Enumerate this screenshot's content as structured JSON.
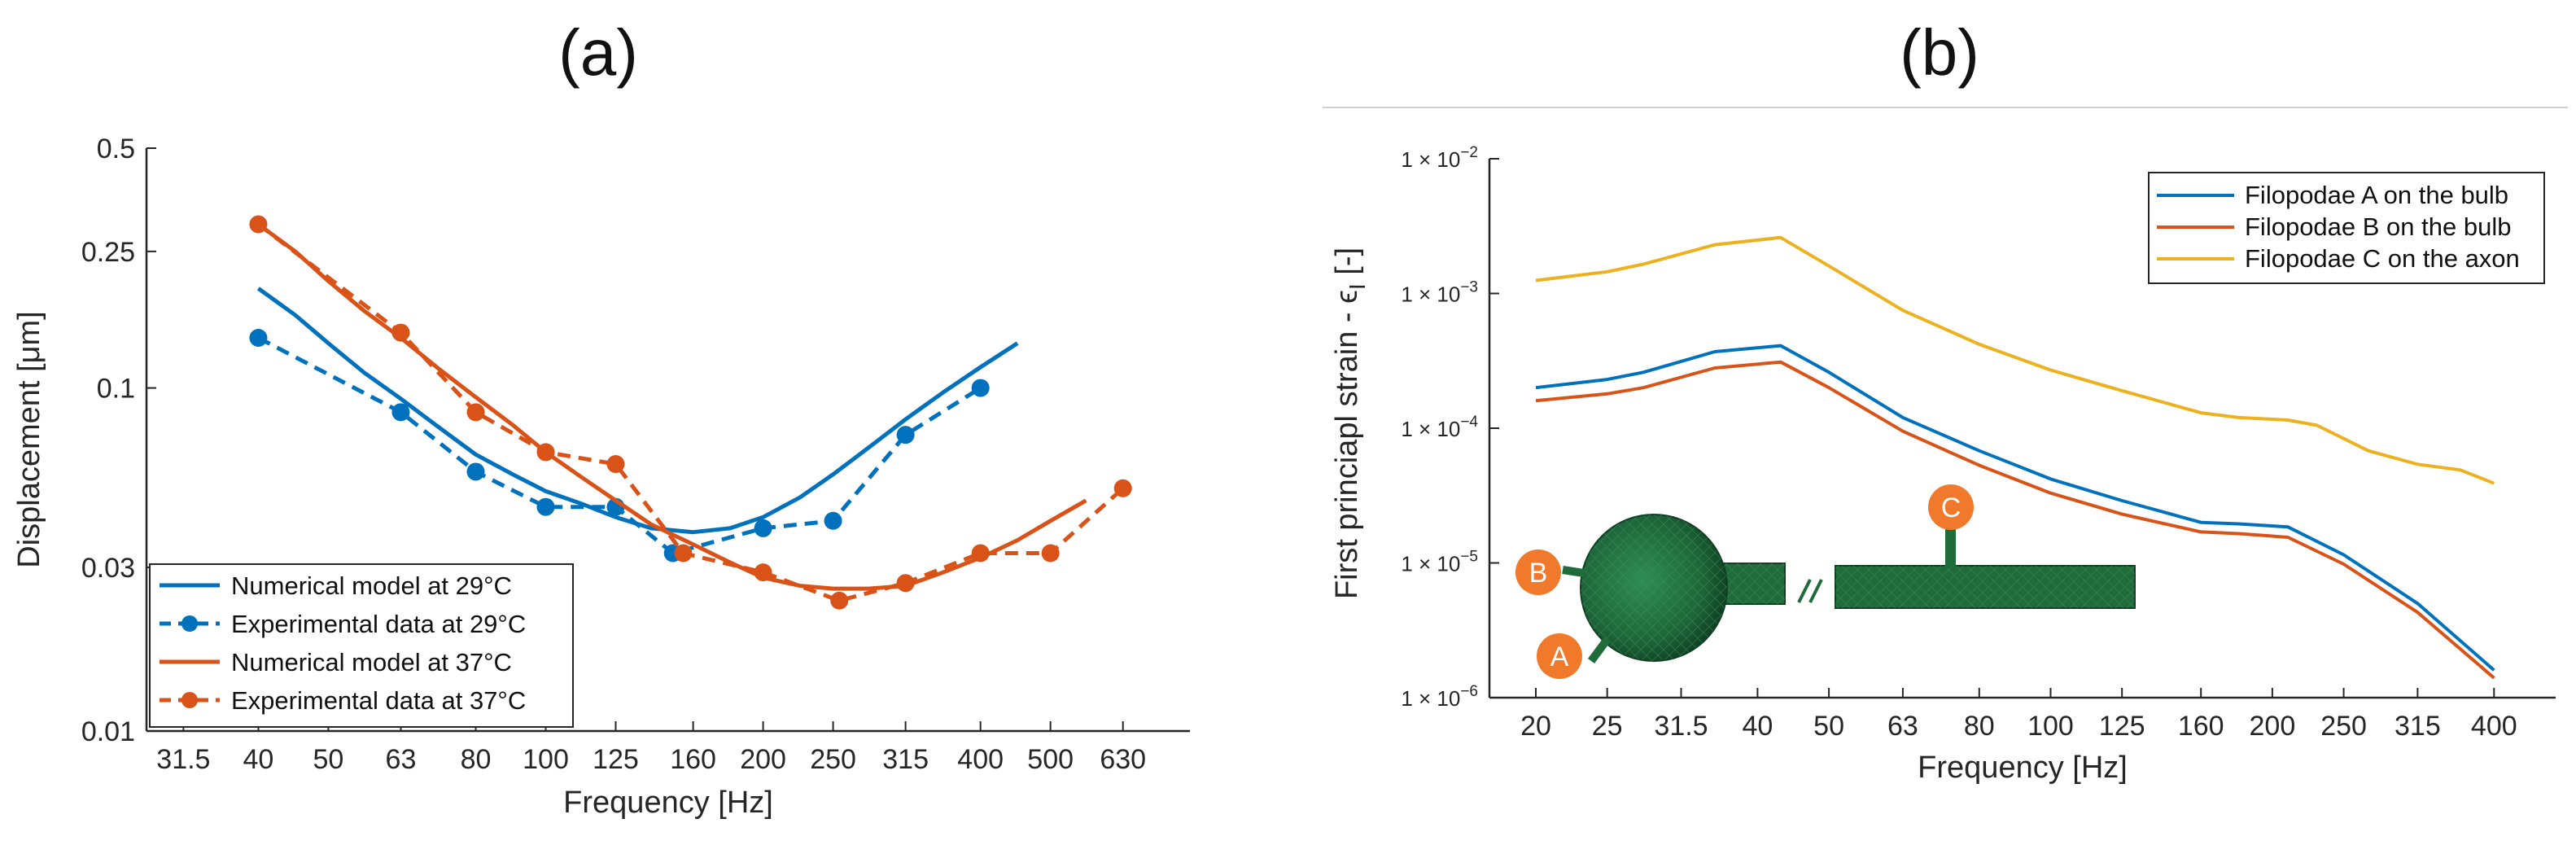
{
  "chart_data": [
    {
      "panel": "(a)",
      "type": "line",
      "xlabel": "Frequency [Hz]",
      "ylabel": "Displacement [μm]",
      "x_scale": "log",
      "y_scale": "log",
      "xlim": [
        28,
        780
      ],
      "ylim": [
        0.01,
        0.5
      ],
      "x_ticks": [
        31.5,
        40,
        50,
        63,
        80,
        100,
        125,
        160,
        200,
        250,
        315,
        400,
        500,
        630
      ],
      "x_tick_labels": [
        "31.5",
        "40",
        "50",
        "63",
        "80",
        "100",
        "125",
        "160",
        "200",
        "250",
        "315",
        "400",
        "500",
        "630"
      ],
      "y_ticks": [
        0.01,
        0.03,
        0.1,
        0.25,
        0.5
      ],
      "y_tick_labels": [
        "0.01",
        "0.03",
        "0.1",
        "0.25",
        "0.5"
      ],
      "legend_position": "bottom-left",
      "series": [
        {
          "name": "Numerical model at 29°C",
          "color": "#0072BD",
          "style": "solid",
          "markers": false,
          "x": [
            40,
            45,
            50,
            56,
            63,
            71,
            80,
            90,
            100,
            112,
            125,
            140,
            160,
            180,
            200,
            225,
            250,
            280,
            315,
            355,
            400,
            450
          ],
          "y": [
            0.195,
            0.163,
            0.135,
            0.111,
            0.093,
            0.077,
            0.064,
            0.056,
            0.05,
            0.046,
            0.042,
            0.039,
            0.038,
            0.039,
            0.042,
            0.048,
            0.056,
            0.067,
            0.081,
            0.097,
            0.115,
            0.135
          ]
        },
        {
          "name": "Experimental data at 29°C",
          "color": "#0072BD",
          "style": "dashed",
          "markers": true,
          "x": [
            40,
            63,
            80,
            100,
            125,
            150,
            200,
            250,
            315,
            400
          ],
          "y": [
            0.14,
            0.085,
            0.057,
            0.045,
            0.045,
            0.033,
            0.039,
            0.041,
            0.073,
            0.1
          ]
        },
        {
          "name": "Numerical model at 37°C",
          "color": "#D95319",
          "style": "solid",
          "markers": false,
          "x": [
            40,
            45,
            50,
            56,
            63,
            71,
            80,
            90,
            100,
            112,
            125,
            140,
            160,
            180,
            200,
            225,
            250,
            280,
            315,
            355,
            400,
            450,
            500,
            560
          ],
          "y": [
            0.3,
            0.25,
            0.205,
            0.168,
            0.14,
            0.114,
            0.094,
            0.078,
            0.065,
            0.055,
            0.047,
            0.04,
            0.035,
            0.031,
            0.028,
            0.0265,
            0.026,
            0.026,
            0.0265,
            0.029,
            0.032,
            0.036,
            0.041,
            0.047
          ]
        },
        {
          "name": "Experimental data at 37°C",
          "color": "#D95319",
          "style": "dashed",
          "markers": true,
          "x": [
            40,
            63,
            80,
            100,
            125,
            155,
            200,
            255,
            315,
            400,
            500,
            630
          ],
          "y": [
            0.3,
            0.145,
            0.085,
            0.065,
            0.06,
            0.033,
            0.029,
            0.024,
            0.027,
            0.033,
            0.033,
            0.051
          ]
        }
      ]
    },
    {
      "panel": "(b)",
      "type": "line",
      "xlabel": "Frequency [Hz]",
      "ylabel": "First princiapl strain - ε_I [-]",
      "ylabel_main": "First princiapl strain - ",
      "ylabel_symbol": "ϵ",
      "ylabel_subscript": "I",
      "ylabel_unit": " [-]",
      "x_scale": "log",
      "y_scale": "log",
      "xlim": [
        17.3,
        485
      ],
      "ylim": [
        1e-06,
        0.01
      ],
      "x_ticks": [
        20,
        25,
        31.5,
        40,
        50,
        63,
        80,
        100,
        125,
        160,
        200,
        250,
        315,
        400
      ],
      "x_tick_labels": [
        "20",
        "25",
        "31.5",
        "40",
        "50",
        "63",
        "80",
        "100",
        "125",
        "160",
        "200",
        "250",
        "315",
        "400"
      ],
      "y_ticks": [
        1e-06,
        1e-05,
        0.0001,
        0.001,
        0.01
      ],
      "y_tick_base": [
        "1 × 10",
        "1 × 10",
        "1 × 10",
        "1 × 10",
        "1 × 10"
      ],
      "y_tick_exp": [
        "−6",
        "−5",
        "−4",
        "−3",
        "−2"
      ],
      "legend_position": "top-right",
      "series": [
        {
          "name": "Filopodae A on the bulb",
          "color": "#0072BD",
          "x": [
            20,
            25,
            28,
            35,
            43,
            50,
            63,
            80,
            100,
            125,
            160,
            180,
            210,
            250,
            315,
            400
          ],
          "y": [
            0.0002,
            0.00023,
            0.00026,
            0.00037,
            0.00041,
            0.00026,
            0.00012,
            6.8e-05,
            4.2e-05,
            2.9e-05,
            2e-05,
            1.95e-05,
            1.85e-05,
            1.15e-05,
            5e-06,
            1.6e-06
          ]
        },
        {
          "name": "Filopodae B on the bulb",
          "color": "#D95319",
          "x": [
            20,
            25,
            28,
            35,
            43,
            50,
            63,
            80,
            100,
            125,
            160,
            180,
            210,
            250,
            315,
            400
          ],
          "y": [
            0.00016,
            0.00018,
            0.0002,
            0.00028,
            0.00031,
            0.0002,
            9.5e-05,
            5.3e-05,
            3.3e-05,
            2.3e-05,
            1.7e-05,
            1.65e-05,
            1.55e-05,
            9.8e-06,
            4.3e-06,
            1.4e-06
          ]
        },
        {
          "name": "Filopodae C on the axon",
          "color": "#EDB120",
          "x": [
            20,
            25,
            28,
            35,
            43,
            50,
            63,
            80,
            100,
            125,
            160,
            180,
            210,
            230,
            270,
            315,
            360,
            400
          ],
          "y": [
            0.00125,
            0.00145,
            0.00165,
            0.0023,
            0.0026,
            0.0016,
            0.00075,
            0.00042,
            0.00027,
            0.00019,
            0.00013,
            0.00012,
            0.000115,
            0.000105,
            6.8e-05,
            5.4e-05,
            4.9e-05,
            3.9e-05
          ]
        }
      ],
      "inset_labels": [
        "A",
        "B",
        "C"
      ],
      "inset_color": "#1F6B3A",
      "callout_color": "#F0792B"
    }
  ]
}
